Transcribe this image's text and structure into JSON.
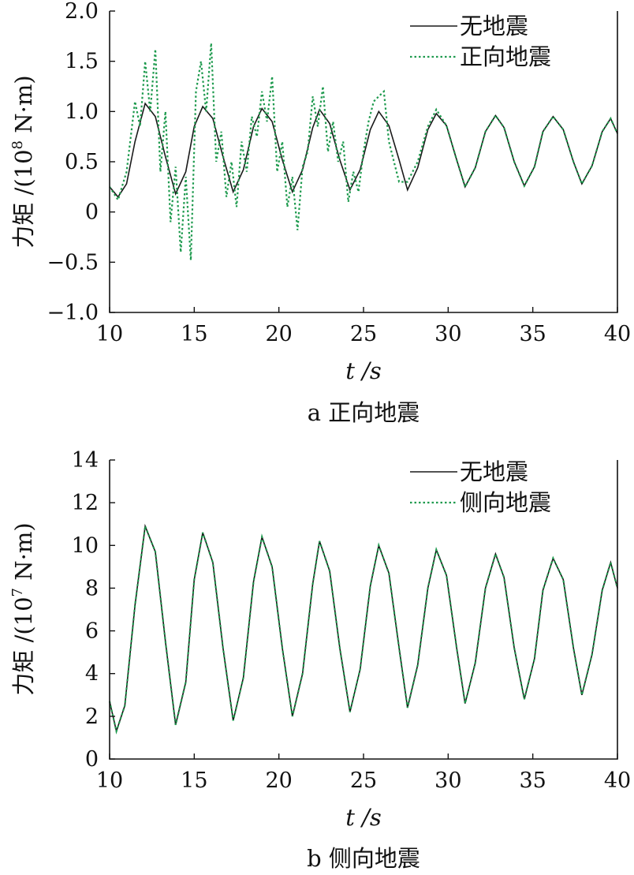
{
  "chart_data": [
    {
      "type": "line",
      "caption": "a 正向地震",
      "xlabel": "t /s",
      "ylabel_main": "力矩 /(10",
      "ylabel_sup": "8",
      "ylabel_tail": " N·m)",
      "xlim": [
        10,
        40
      ],
      "ylim": [
        -1.0,
        2.0
      ],
      "xticks": [
        10,
        15,
        20,
        25,
        30,
        35,
        40
      ],
      "yticks": [
        -1.0,
        -0.5,
        0,
        0.5,
        1.0,
        1.5,
        2.0
      ],
      "ytick_labels": [
        "−1.0",
        "−0.5",
        "0",
        "0.5",
        "1.0",
        "1.5",
        "2.0"
      ],
      "legend_position": "top-right",
      "series": [
        {
          "name": "无地震",
          "style": "solid",
          "color": "#1a1a1a",
          "x": [
            10.0,
            10.5,
            11.0,
            11.5,
            12.1,
            12.7,
            13.3,
            13.9,
            14.5,
            15.0,
            15.5,
            16.1,
            16.7,
            17.3,
            17.9,
            18.5,
            19.0,
            19.6,
            20.2,
            20.8,
            21.4,
            22.0,
            22.4,
            23.0,
            23.6,
            24.2,
            24.8,
            25.4,
            25.9,
            26.5,
            27.1,
            27.6,
            28.2,
            28.8,
            29.3,
            29.9,
            30.5,
            31.0,
            31.6,
            32.2,
            32.8,
            33.3,
            33.9,
            34.5,
            35.1,
            35.6,
            36.2,
            36.8,
            37.4,
            37.9,
            38.5,
            39.1,
            39.6,
            40.0
          ],
          "y": [
            0.25,
            0.15,
            0.28,
            0.7,
            1.08,
            0.95,
            0.55,
            0.18,
            0.4,
            0.85,
            1.05,
            0.93,
            0.55,
            0.2,
            0.42,
            0.85,
            1.03,
            0.9,
            0.52,
            0.2,
            0.42,
            0.84,
            1.02,
            0.88,
            0.52,
            0.22,
            0.42,
            0.82,
            1.0,
            0.86,
            0.52,
            0.22,
            0.44,
            0.82,
            0.98,
            0.86,
            0.52,
            0.25,
            0.44,
            0.8,
            0.96,
            0.84,
            0.5,
            0.26,
            0.45,
            0.8,
            0.95,
            0.82,
            0.5,
            0.28,
            0.46,
            0.8,
            0.93,
            0.78
          ]
        },
        {
          "name": "正向地震",
          "style": "dotted",
          "color": "#1e9a4e",
          "x": [
            10.0,
            10.5,
            11.0,
            11.5,
            11.8,
            12.1,
            12.4,
            12.7,
            13.0,
            13.3,
            13.6,
            13.9,
            14.2,
            14.5,
            14.8,
            15.1,
            15.4,
            15.7,
            16.0,
            16.3,
            16.6,
            16.9,
            17.2,
            17.5,
            17.8,
            18.1,
            18.4,
            18.7,
            19.0,
            19.3,
            19.6,
            19.9,
            20.2,
            20.5,
            20.8,
            21.1,
            21.4,
            21.7,
            22.0,
            22.3,
            22.6,
            22.9,
            23.2,
            23.5,
            23.8,
            24.1,
            24.4,
            24.7,
            25.0,
            25.3,
            25.6,
            25.9,
            26.2,
            26.5,
            26.8,
            27.1,
            27.6,
            28.2,
            28.8,
            29.3,
            29.9,
            30.5,
            31.0,
            31.6,
            32.2,
            32.8,
            33.3,
            33.9,
            34.5,
            35.1,
            35.6,
            36.2,
            36.8,
            37.4,
            37.9,
            38.5,
            39.1,
            39.6,
            40.0
          ],
          "y": [
            0.25,
            0.12,
            0.4,
            1.1,
            0.85,
            1.5,
            1.0,
            1.62,
            0.4,
            1.0,
            -0.1,
            0.45,
            -0.4,
            0.35,
            -0.48,
            1.2,
            1.5,
            1.0,
            1.68,
            0.5,
            0.8,
            0.15,
            0.5,
            0.05,
            0.7,
            0.4,
            0.95,
            0.75,
            1.2,
            0.9,
            1.35,
            0.4,
            0.7,
            0.05,
            0.35,
            -0.18,
            0.45,
            0.6,
            1.15,
            0.85,
            1.25,
            0.6,
            0.9,
            0.5,
            0.7,
            0.1,
            0.4,
            0.2,
            0.6,
            0.9,
            1.1,
            1.15,
            1.2,
            0.7,
            0.5,
            0.3,
            0.3,
            0.5,
            0.85,
            1.02,
            0.86,
            0.52,
            0.25,
            0.44,
            0.8,
            0.96,
            0.84,
            0.5,
            0.26,
            0.45,
            0.8,
            0.95,
            0.82,
            0.5,
            0.28,
            0.46,
            0.8,
            0.93,
            0.78
          ]
        }
      ]
    },
    {
      "type": "line",
      "caption": "b 侧向地震",
      "xlabel": "t /s",
      "ylabel_main": "力矩 /(10",
      "ylabel_sup": "7",
      "ylabel_tail": " N·m)",
      "xlim": [
        10,
        40
      ],
      "ylim": [
        0,
        14
      ],
      "xticks": [
        10,
        15,
        20,
        25,
        30,
        35,
        40
      ],
      "yticks": [
        0,
        2,
        4,
        6,
        8,
        10,
        12,
        14
      ],
      "ytick_labels": [
        "0",
        "2",
        "4",
        "6",
        "8",
        "10",
        "12",
        "14"
      ],
      "legend_position": "top-right",
      "series": [
        {
          "name": "无地震",
          "style": "solid",
          "color": "#1a1a1a",
          "x": [
            10.0,
            10.4,
            10.9,
            11.5,
            12.1,
            12.7,
            13.3,
            13.9,
            14.5,
            15.0,
            15.5,
            16.1,
            16.7,
            17.3,
            17.9,
            18.5,
            19.0,
            19.6,
            20.2,
            20.8,
            21.4,
            22.0,
            22.4,
            23.0,
            23.6,
            24.2,
            24.8,
            25.4,
            25.9,
            26.5,
            27.1,
            27.6,
            28.2,
            28.8,
            29.3,
            29.9,
            30.5,
            31.0,
            31.6,
            32.2,
            32.8,
            33.3,
            33.9,
            34.5,
            35.1,
            35.6,
            36.2,
            36.8,
            37.4,
            37.9,
            38.5,
            39.1,
            39.6,
            40.0
          ],
          "y": [
            2.7,
            1.3,
            2.5,
            7.2,
            10.9,
            9.7,
            5.5,
            1.6,
            3.6,
            8.4,
            10.6,
            9.2,
            5.2,
            1.8,
            3.8,
            8.3,
            10.4,
            9.0,
            5.2,
            2.0,
            4.0,
            8.2,
            10.2,
            8.8,
            5.2,
            2.2,
            4.2,
            8.1,
            10.0,
            8.7,
            5.2,
            2.4,
            4.4,
            8.0,
            9.8,
            8.6,
            5.2,
            2.6,
            4.5,
            8.0,
            9.6,
            8.5,
            5.2,
            2.8,
            4.7,
            7.9,
            9.4,
            8.4,
            5.2,
            3.0,
            4.9,
            7.9,
            9.2,
            8.0
          ]
        },
        {
          "name": "侧向地震",
          "style": "dotted",
          "color": "#1e9a4e",
          "x": [
            10.0,
            10.4,
            10.9,
            11.5,
            12.1,
            12.7,
            13.3,
            13.9,
            14.5,
            15.0,
            15.5,
            16.1,
            16.7,
            17.3,
            17.9,
            18.5,
            19.0,
            19.6,
            20.2,
            20.8,
            21.4,
            22.0,
            22.4,
            23.0,
            23.6,
            24.2,
            24.8,
            25.4,
            25.9,
            26.5,
            27.1,
            27.6,
            28.2,
            28.8,
            29.3,
            29.9,
            30.5,
            31.0,
            31.6,
            32.2,
            32.8,
            33.3,
            33.9,
            34.5,
            35.1,
            35.6,
            36.2,
            36.8,
            37.4,
            37.9,
            38.5,
            39.1,
            39.6,
            40.0
          ],
          "y": [
            2.7,
            1.3,
            2.5,
            7.2,
            10.9,
            9.7,
            5.5,
            1.6,
            3.6,
            8.4,
            10.6,
            9.2,
            5.2,
            1.8,
            3.8,
            8.3,
            10.4,
            9.0,
            5.2,
            2.0,
            4.0,
            8.2,
            10.2,
            8.8,
            5.2,
            2.2,
            4.2,
            8.1,
            10.0,
            8.7,
            5.2,
            2.4,
            4.4,
            8.0,
            9.8,
            8.6,
            5.2,
            2.6,
            4.5,
            8.0,
            9.6,
            8.5,
            5.2,
            2.8,
            4.7,
            7.9,
            9.4,
            8.4,
            5.2,
            3.0,
            4.9,
            7.9,
            9.2,
            8.0
          ]
        }
      ]
    }
  ]
}
